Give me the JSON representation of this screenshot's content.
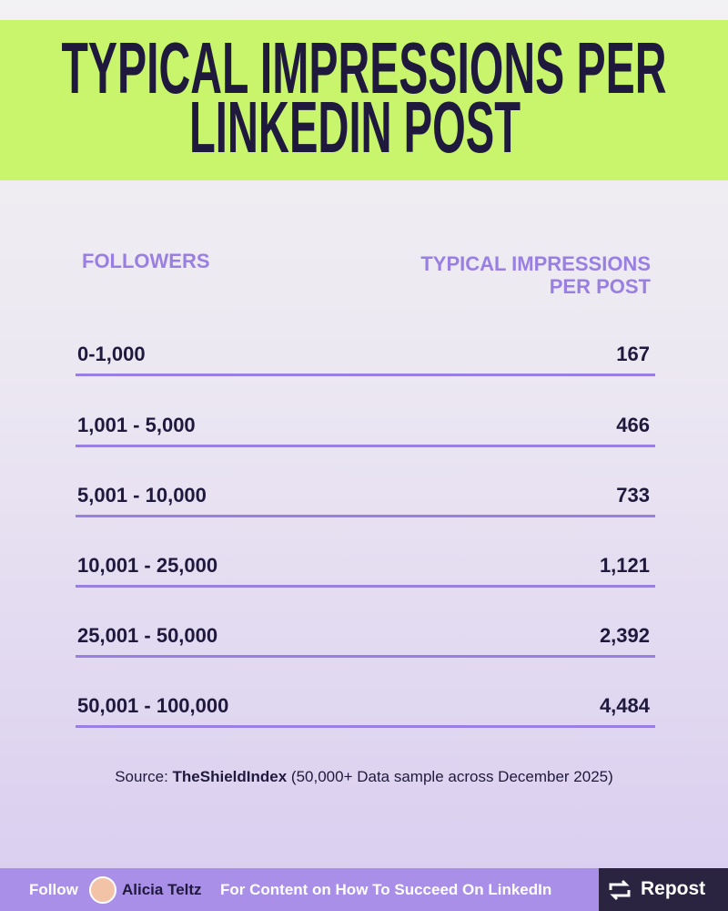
{
  "header": {
    "title_lines": [
      "TYPICAL IMPRESSIONS PER",
      "LINKEDIN POST"
    ]
  },
  "table": {
    "columns": [
      "FOLLOWERS",
      "TYPICAL IMPRESSIONS PER POST"
    ],
    "rows": [
      [
        "0-1,000",
        "167"
      ],
      [
        "1,001 - 5,000",
        "466"
      ],
      [
        "5,001 - 10,000",
        "733"
      ],
      [
        "10,001 - 25,000",
        "1,121"
      ],
      [
        "25,001 - 50,000",
        "2,392"
      ],
      [
        "50,001 - 100,000",
        "4,484"
      ]
    ]
  },
  "source": {
    "label": "Source:",
    "name": "TheShieldIndex",
    "note": "(50,000+ Data sample across December 2025)"
  },
  "footer": {
    "follow": "Follow",
    "author": "Alicia Teltz",
    "tagline": "For Content on How To Succeed On LinkedIn",
    "repost": "Repost"
  }
}
